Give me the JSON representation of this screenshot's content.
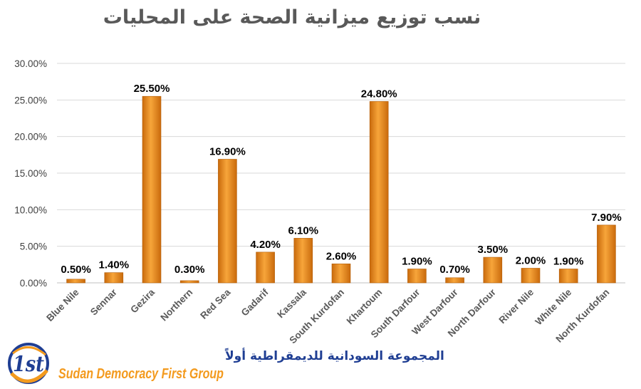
{
  "chart_data": {
    "type": "bar",
    "title": "نسب توزيع ميزانية الصحة على المحليات",
    "categories": [
      "Blue Nile",
      "Sennar",
      "Gezira",
      "Northern",
      "Red Sea",
      "Gadarif",
      "Kassala",
      "South Kurdofan",
      "Khartoum",
      "South Darfour",
      "West Darfour",
      "North Darfour",
      "River Nile",
      "White Nile",
      "North Kurdofan"
    ],
    "values": [
      0.5,
      1.4,
      25.5,
      0.3,
      16.9,
      4.2,
      6.1,
      2.6,
      24.8,
      1.9,
      0.7,
      3.5,
      2.0,
      1.9,
      7.9
    ],
    "data_labels": [
      "0.50%",
      "1.40%",
      "25.50%",
      "0.30%",
      "16.90%",
      "4.20%",
      "6.10%",
      "2.60%",
      "24.80%",
      "1.90%",
      "0.70%",
      "3.50%",
      "2.00%",
      "1.90%",
      "7.90%"
    ],
    "yticks": [
      0,
      5,
      10,
      15,
      20,
      25,
      30
    ],
    "ytick_labels": [
      "0.00%",
      "5.00%",
      "10.00%",
      "15.00%",
      "20.00%",
      "25.00%",
      "30.00%"
    ],
    "ylim": [
      0,
      30
    ],
    "xlabel": "",
    "ylabel": "",
    "grid": true,
    "legend": "none",
    "bar_color": "#f08c1e"
  },
  "logo": {
    "mark_text": "1st",
    "arabic_name": "المجموعة السودانية للديمقراطية أولاً",
    "english_name": "Sudan Democracy First Group",
    "colors": {
      "blue": "#1f3e93",
      "orange": "#f39a1e"
    }
  }
}
